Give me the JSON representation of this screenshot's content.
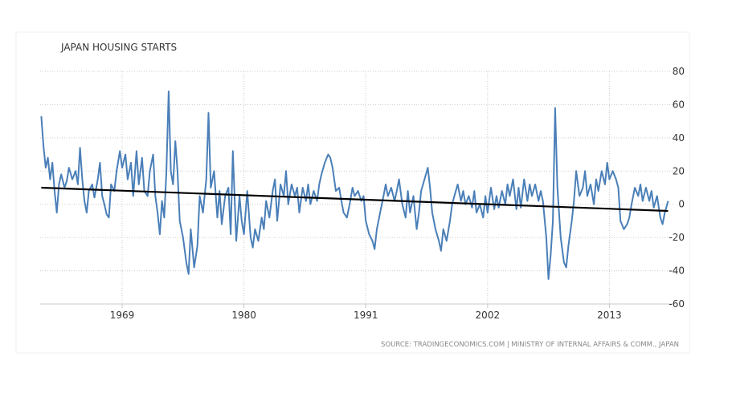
{
  "chart_data": {
    "type": "line",
    "title": "JAPAN HOUSING STARTS",
    "source": "SOURCE: TRADINGECONOMICS.COM | MINISTRY OF INTERNAL AFFAIRS & COMM., JAPAN",
    "x_tick_labels": [
      "1969",
      "1980",
      "1991",
      "2002",
      "2013"
    ],
    "y_tick_labels": [
      "80",
      "60",
      "40",
      "20",
      "0",
      "-20",
      "-40",
      "-60"
    ],
    "ylim": [
      -60,
      80
    ],
    "xlim": [
      1961.6,
      2018.7
    ],
    "grid": true,
    "series": [
      {
        "color": "#4a7fb8",
        "points": [
          [
            1961.7,
            53
          ],
          [
            1961.9,
            35
          ],
          [
            1962.1,
            22
          ],
          [
            1962.3,
            28
          ],
          [
            1962.5,
            15
          ],
          [
            1962.7,
            25
          ],
          [
            1962.9,
            8
          ],
          [
            1963.1,
            -5
          ],
          [
            1963.3,
            12
          ],
          [
            1963.5,
            18
          ],
          [
            1963.8,
            10
          ],
          [
            1964.0,
            14
          ],
          [
            1964.2,
            22
          ],
          [
            1964.5,
            15
          ],
          [
            1964.8,
            20
          ],
          [
            1965.0,
            12
          ],
          [
            1965.2,
            34
          ],
          [
            1965.4,
            15
          ],
          [
            1965.6,
            2
          ],
          [
            1965.8,
            -5
          ],
          [
            1966.0,
            8
          ],
          [
            1966.3,
            12
          ],
          [
            1966.5,
            4
          ],
          [
            1966.8,
            15
          ],
          [
            1967.0,
            25
          ],
          [
            1967.2,
            5
          ],
          [
            1967.4,
            0
          ],
          [
            1967.6,
            -6
          ],
          [
            1967.8,
            -8
          ],
          [
            1968.0,
            12
          ],
          [
            1968.3,
            8
          ],
          [
            1968.5,
            20
          ],
          [
            1968.8,
            32
          ],
          [
            1969.0,
            22
          ],
          [
            1969.3,
            30
          ],
          [
            1969.5,
            15
          ],
          [
            1969.8,
            25
          ],
          [
            1970.0,
            5
          ],
          [
            1970.3,
            32
          ],
          [
            1970.5,
            12
          ],
          [
            1970.8,
            28
          ],
          [
            1971.0,
            8
          ],
          [
            1971.3,
            5
          ],
          [
            1971.5,
            20
          ],
          [
            1971.8,
            30
          ],
          [
            1972.0,
            5
          ],
          [
            1972.2,
            -5
          ],
          [
            1972.4,
            -18
          ],
          [
            1972.6,
            2
          ],
          [
            1972.8,
            -8
          ],
          [
            1973.0,
            20
          ],
          [
            1973.2,
            68
          ],
          [
            1973.4,
            20
          ],
          [
            1973.6,
            12
          ],
          [
            1973.8,
            38
          ],
          [
            1974.0,
            20
          ],
          [
            1974.2,
            -10
          ],
          [
            1974.5,
            -20
          ],
          [
            1974.8,
            -35
          ],
          [
            1975.0,
            -42
          ],
          [
            1975.2,
            -15
          ],
          [
            1975.5,
            -38
          ],
          [
            1975.8,
            -25
          ],
          [
            1976.0,
            5
          ],
          [
            1976.3,
            -5
          ],
          [
            1976.6,
            15
          ],
          [
            1976.8,
            55
          ],
          [
            1977.0,
            10
          ],
          [
            1977.3,
            20
          ],
          [
            1977.6,
            -8
          ],
          [
            1977.8,
            8
          ],
          [
            1978.0,
            -12
          ],
          [
            1978.3,
            5
          ],
          [
            1978.6,
            10
          ],
          [
            1978.8,
            -18
          ],
          [
            1979.0,
            32
          ],
          [
            1979.3,
            -22
          ],
          [
            1979.6,
            5
          ],
          [
            1979.8,
            -10
          ],
          [
            1980.0,
            -18
          ],
          [
            1980.3,
            8
          ],
          [
            1980.6,
            -20
          ],
          [
            1980.8,
            -26
          ],
          [
            1981.0,
            -15
          ],
          [
            1981.3,
            -22
          ],
          [
            1981.6,
            -8
          ],
          [
            1981.8,
            -15
          ],
          [
            1982.0,
            2
          ],
          [
            1982.3,
            -8
          ],
          [
            1982.6,
            8
          ],
          [
            1982.8,
            15
          ],
          [
            1983.0,
            -10
          ],
          [
            1983.3,
            12
          ],
          [
            1983.6,
            5
          ],
          [
            1983.8,
            20
          ],
          [
            1984.0,
            0
          ],
          [
            1984.3,
            12
          ],
          [
            1984.6,
            5
          ],
          [
            1984.8,
            10
          ],
          [
            1985.0,
            -5
          ],
          [
            1985.3,
            10
          ],
          [
            1985.6,
            2
          ],
          [
            1985.8,
            12
          ],
          [
            1986.0,
            0
          ],
          [
            1986.3,
            8
          ],
          [
            1986.6,
            2
          ],
          [
            1986.8,
            12
          ],
          [
            1987.0,
            18
          ],
          [
            1987.3,
            25
          ],
          [
            1987.6,
            30
          ],
          [
            1987.8,
            28
          ],
          [
            1988.0,
            22
          ],
          [
            1988.3,
            8
          ],
          [
            1988.6,
            10
          ],
          [
            1988.8,
            2
          ],
          [
            1989.0,
            -5
          ],
          [
            1989.3,
            -8
          ],
          [
            1989.6,
            2
          ],
          [
            1989.8,
            10
          ],
          [
            1990.0,
            5
          ],
          [
            1990.3,
            8
          ],
          [
            1990.6,
            2
          ],
          [
            1990.8,
            5
          ],
          [
            1991.0,
            -10
          ],
          [
            1991.3,
            -18
          ],
          [
            1991.6,
            -22
          ],
          [
            1991.8,
            -27
          ],
          [
            1992.0,
            -15
          ],
          [
            1992.3,
            -5
          ],
          [
            1992.6,
            5
          ],
          [
            1992.8,
            12
          ],
          [
            1993.0,
            5
          ],
          [
            1993.3,
            10
          ],
          [
            1993.6,
            2
          ],
          [
            1993.8,
            8
          ],
          [
            1994.0,
            15
          ],
          [
            1994.3,
            0
          ],
          [
            1994.6,
            -8
          ],
          [
            1994.8,
            8
          ],
          [
            1995.0,
            -5
          ],
          [
            1995.3,
            5
          ],
          [
            1995.6,
            -15
          ],
          [
            1995.8,
            -5
          ],
          [
            1996.0,
            8
          ],
          [
            1996.3,
            15
          ],
          [
            1996.6,
            22
          ],
          [
            1996.8,
            10
          ],
          [
            1997.0,
            -5
          ],
          [
            1997.3,
            -15
          ],
          [
            1997.6,
            -22
          ],
          [
            1997.8,
            -28
          ],
          [
            1998.0,
            -15
          ],
          [
            1998.3,
            -22
          ],
          [
            1998.6,
            -10
          ],
          [
            1998.8,
            0
          ],
          [
            1999.0,
            5
          ],
          [
            1999.3,
            12
          ],
          [
            1999.6,
            2
          ],
          [
            1999.8,
            8
          ],
          [
            2000.0,
            0
          ],
          [
            2000.3,
            5
          ],
          [
            2000.6,
            -2
          ],
          [
            2000.8,
            8
          ],
          [
            2001.0,
            -5
          ],
          [
            2001.3,
            0
          ],
          [
            2001.6,
            -8
          ],
          [
            2001.8,
            5
          ],
          [
            2002.0,
            -5
          ],
          [
            2002.3,
            10
          ],
          [
            2002.6,
            -3
          ],
          [
            2002.8,
            5
          ],
          [
            2003.0,
            -2
          ],
          [
            2003.3,
            8
          ],
          [
            2003.6,
            0
          ],
          [
            2003.8,
            12
          ],
          [
            2004.0,
            5
          ],
          [
            2004.3,
            15
          ],
          [
            2004.6,
            -3
          ],
          [
            2004.8,
            10
          ],
          [
            2005.0,
            -2
          ],
          [
            2005.3,
            15
          ],
          [
            2005.6,
            2
          ],
          [
            2005.8,
            12
          ],
          [
            2006.0,
            5
          ],
          [
            2006.3,
            12
          ],
          [
            2006.6,
            2
          ],
          [
            2006.8,
            8
          ],
          [
            2007.0,
            2
          ],
          [
            2007.3,
            -20
          ],
          [
            2007.5,
            -45
          ],
          [
            2007.7,
            -30
          ],
          [
            2007.9,
            -10
          ],
          [
            2008.1,
            58
          ],
          [
            2008.3,
            10
          ],
          [
            2008.6,
            -20
          ],
          [
            2008.9,
            -35
          ],
          [
            2009.1,
            -38
          ],
          [
            2009.3,
            -25
          ],
          [
            2009.6,
            -10
          ],
          [
            2009.8,
            2
          ],
          [
            2010.0,
            20
          ],
          [
            2010.3,
            5
          ],
          [
            2010.6,
            10
          ],
          [
            2010.8,
            20
          ],
          [
            2011.0,
            5
          ],
          [
            2011.3,
            12
          ],
          [
            2011.6,
            0
          ],
          [
            2011.8,
            15
          ],
          [
            2012.0,
            8
          ],
          [
            2012.3,
            20
          ],
          [
            2012.6,
            12
          ],
          [
            2012.8,
            25
          ],
          [
            2013.0,
            15
          ],
          [
            2013.3,
            20
          ],
          [
            2013.6,
            15
          ],
          [
            2013.8,
            10
          ],
          [
            2014.0,
            -10
          ],
          [
            2014.3,
            -15
          ],
          [
            2014.6,
            -12
          ],
          [
            2014.8,
            -8
          ],
          [
            2015.0,
            0
          ],
          [
            2015.3,
            10
          ],
          [
            2015.6,
            5
          ],
          [
            2015.8,
            12
          ],
          [
            2016.0,
            2
          ],
          [
            2016.3,
            10
          ],
          [
            2016.6,
            2
          ],
          [
            2016.8,
            8
          ],
          [
            2017.0,
            -2
          ],
          [
            2017.3,
            5
          ],
          [
            2017.6,
            -8
          ],
          [
            2017.8,
            -12
          ],
          [
            2018.0,
            -5
          ],
          [
            2018.3,
            2
          ]
        ]
      },
      {
        "color": "#000000",
        "points": [
          [
            1961.7,
            10
          ],
          [
            2018.3,
            -4
          ]
        ]
      }
    ]
  }
}
